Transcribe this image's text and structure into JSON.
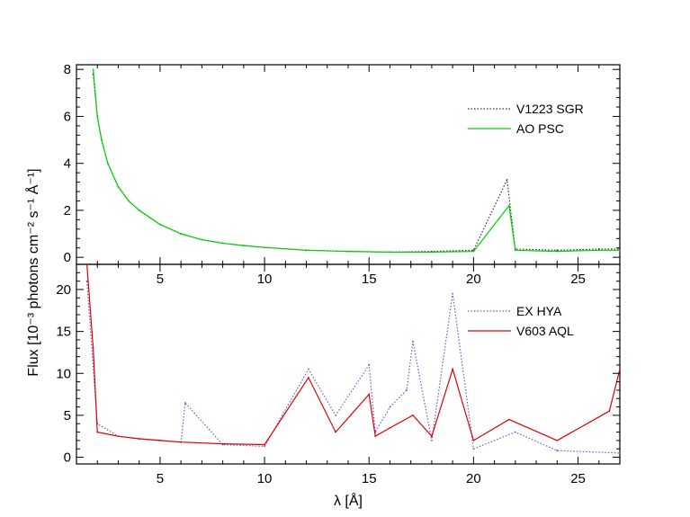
{
  "colors": {
    "v1223": "#333333",
    "ao_psc": "#00d000",
    "ex_hya": "#6a5acd",
    "v603": "#e00000"
  },
  "axis": {
    "xlabel": "λ [Å]",
    "ylabel": "Flux [10⁻³ photons cm⁻² s⁻¹ Å⁻¹]"
  },
  "chart_data": [
    {
      "type": "line",
      "panel": "top",
      "xlim": [
        1,
        27
      ],
      "ylim": [
        -0.3,
        8.2
      ],
      "x_ticks": [
        5,
        10,
        15,
        20,
        25
      ],
      "y_ticks": [
        0,
        2,
        4,
        6,
        8
      ],
      "x_tick_labels": [
        "5",
        "10",
        "15",
        "20",
        "25"
      ],
      "y_tick_labels": [
        "0",
        "2",
        "4",
        "6",
        "8"
      ],
      "legend_position": "top-right",
      "series": [
        {
          "name": "V1223 SGR",
          "style": "dotted",
          "color": "#333333",
          "x": [
            1.8,
            2.0,
            2.2,
            2.5,
            3.0,
            3.5,
            4.0,
            4.5,
            5.0,
            6.0,
            7.0,
            8.0,
            9.0,
            10.0,
            12.0,
            14.0,
            16.0,
            18.0,
            20.0,
            21.6,
            22.0,
            24.0,
            26.0,
            27.0
          ],
          "y": [
            7.8,
            6.0,
            5.0,
            4.0,
            3.0,
            2.4,
            2.0,
            1.7,
            1.4,
            1.0,
            0.75,
            0.6,
            0.5,
            0.42,
            0.3,
            0.25,
            0.22,
            0.25,
            0.3,
            3.3,
            0.35,
            0.3,
            0.35,
            0.35
          ]
        },
        {
          "name": "AO PSC",
          "style": "solid",
          "color": "#00d000",
          "x": [
            1.8,
            2.0,
            2.2,
            2.5,
            3.0,
            3.5,
            4.0,
            4.5,
            5.0,
            6.0,
            7.0,
            8.0,
            9.0,
            10.0,
            12.0,
            14.0,
            16.0,
            18.0,
            20.0,
            21.7,
            22.0,
            24.0,
            26.0,
            27.0
          ],
          "y": [
            8.0,
            6.0,
            5.0,
            4.0,
            3.0,
            2.4,
            2.0,
            1.7,
            1.4,
            1.0,
            0.75,
            0.6,
            0.5,
            0.42,
            0.3,
            0.25,
            0.22,
            0.22,
            0.25,
            2.2,
            0.3,
            0.25,
            0.3,
            0.3
          ]
        }
      ]
    },
    {
      "type": "line",
      "panel": "bottom",
      "xlim": [
        1,
        27
      ],
      "ylim": [
        -0.8,
        23
      ],
      "x_ticks": [
        5,
        10,
        15,
        20,
        25
      ],
      "y_ticks": [
        0,
        5,
        10,
        15,
        20
      ],
      "x_tick_labels": [
        "5",
        "10",
        "15",
        "20",
        "25"
      ],
      "y_tick_labels": [
        "0",
        "5",
        "10",
        "15",
        "20"
      ],
      "legend_position": "top-right",
      "series": [
        {
          "name": "EX HYA",
          "style": "dotted",
          "color": "#6a5acd",
          "x": [
            1.5,
            2.0,
            3.0,
            4.0,
            5.0,
            6.0,
            6.2,
            8.0,
            10.0,
            12.1,
            13.4,
            15.0,
            15.3,
            16.0,
            16.8,
            17.1,
            18.0,
            19.0,
            20.0,
            22.0,
            24.0,
            27.0
          ],
          "y": [
            21.0,
            4.0,
            2.5,
            2.2,
            2.0,
            1.8,
            6.5,
            1.5,
            1.3,
            10.5,
            5.0,
            11.0,
            3.0,
            6.0,
            8.0,
            13.8,
            2.0,
            19.5,
            1.0,
            3.0,
            0.8,
            0.5
          ]
        },
        {
          "name": "V603 AQL",
          "style": "solid",
          "color": "#e00000",
          "x": [
            1.5,
            1.8,
            2.0,
            3.0,
            4.0,
            5.0,
            6.0,
            8.0,
            10.0,
            12.1,
            13.4,
            15.0,
            15.3,
            16.0,
            17.1,
            18.0,
            19.0,
            20.0,
            21.7,
            24.0,
            26.5,
            27.0
          ],
          "y": [
            23.0,
            13.0,
            3.0,
            2.5,
            2.2,
            2.0,
            1.8,
            1.6,
            1.5,
            9.5,
            3.0,
            7.5,
            2.5,
            3.5,
            5.0,
            2.5,
            10.5,
            2.0,
            4.5,
            2.0,
            5.5,
            10.5
          ]
        }
      ]
    }
  ]
}
